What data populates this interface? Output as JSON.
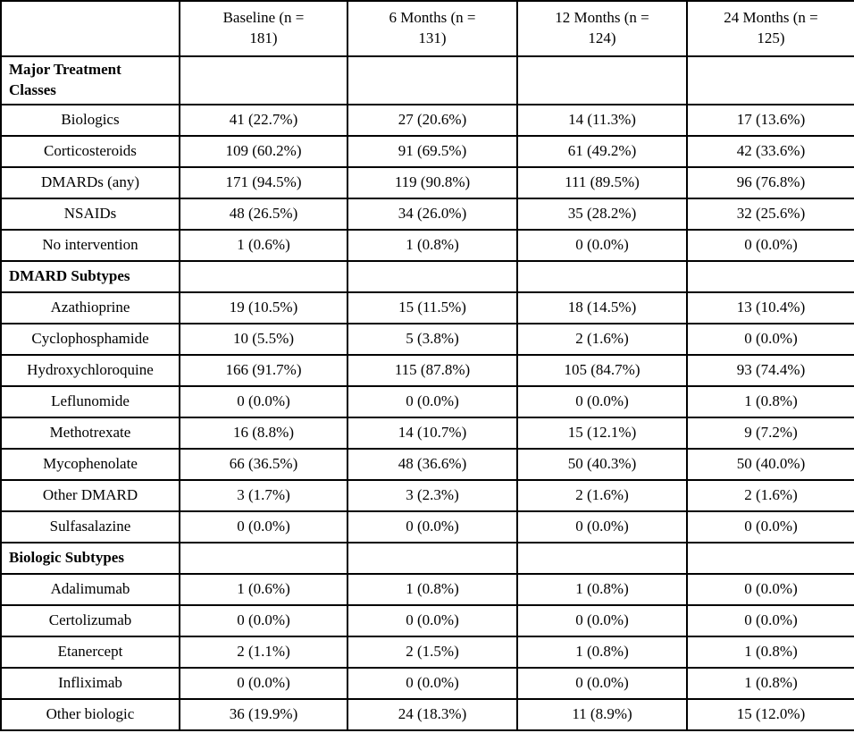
{
  "colors": {
    "background": "#ffffff",
    "border": "#000000",
    "text": "#000000"
  },
  "table": {
    "header": {
      "corner": "",
      "columns": [
        "Baseline (n = 181)",
        "6 Months (n = 131)",
        "12 Months (n = 124)",
        "24 Months (n = 125)"
      ]
    },
    "rows": [
      {
        "kind": "section",
        "label": "Major Treatment Classes",
        "values": [
          "",
          "",
          "",
          ""
        ]
      },
      {
        "kind": "data",
        "label": "Biologics",
        "values": [
          "41 (22.7%)",
          "27 (20.6%)",
          "14 (11.3%)",
          "17 (13.6%)"
        ]
      },
      {
        "kind": "data",
        "label": "Corticosteroids",
        "values": [
          "109 (60.2%)",
          "91 (69.5%)",
          "61 (49.2%)",
          "42 (33.6%)"
        ]
      },
      {
        "kind": "data",
        "label": "DMARDs (any)",
        "values": [
          "171 (94.5%)",
          "119 (90.8%)",
          "111 (89.5%)",
          "96 (76.8%)"
        ]
      },
      {
        "kind": "data",
        "label": "NSAIDs",
        "values": [
          "48 (26.5%)",
          "34 (26.0%)",
          "35 (28.2%)",
          "32 (25.6%)"
        ]
      },
      {
        "kind": "data",
        "label": "No intervention",
        "values": [
          "1 (0.6%)",
          "1 (0.8%)",
          "0 (0.0%)",
          "0 (0.0%)"
        ]
      },
      {
        "kind": "section",
        "label": "DMARD Subtypes",
        "values": [
          "",
          "",
          "",
          ""
        ]
      },
      {
        "kind": "data",
        "label": "Azathioprine",
        "values": [
          "19 (10.5%)",
          "15 (11.5%)",
          "18 (14.5%)",
          "13 (10.4%)"
        ]
      },
      {
        "kind": "data",
        "label": "Cyclophosphamide",
        "values": [
          "10 (5.5%)",
          "5 (3.8%)",
          "2 (1.6%)",
          "0 (0.0%)"
        ]
      },
      {
        "kind": "data",
        "label": "Hydroxychloroquine",
        "values": [
          "166 (91.7%)",
          "115 (87.8%)",
          "105 (84.7%)",
          "93 (74.4%)"
        ]
      },
      {
        "kind": "data",
        "label": "Leflunomide",
        "values": [
          "0 (0.0%)",
          "0 (0.0%)",
          "0 (0.0%)",
          "1 (0.8%)"
        ]
      },
      {
        "kind": "data",
        "label": "Methotrexate",
        "values": [
          "16 (8.8%)",
          "14 (10.7%)",
          "15 (12.1%)",
          "9 (7.2%)"
        ]
      },
      {
        "kind": "data",
        "label": "Mycophenolate",
        "values": [
          "66 (36.5%)",
          "48 (36.6%)",
          "50 (40.3%)",
          "50 (40.0%)"
        ]
      },
      {
        "kind": "data",
        "label": "Other DMARD",
        "values": [
          "3 (1.7%)",
          "3 (2.3%)",
          "2 (1.6%)",
          "2 (1.6%)"
        ]
      },
      {
        "kind": "data",
        "label": "Sulfasalazine",
        "values": [
          "0 (0.0%)",
          "0 (0.0%)",
          "0 (0.0%)",
          "0 (0.0%)"
        ]
      },
      {
        "kind": "section",
        "label": "Biologic Subtypes",
        "values": [
          "",
          "",
          "",
          ""
        ]
      },
      {
        "kind": "data",
        "label": "Adalimumab",
        "values": [
          "1 (0.6%)",
          "1 (0.8%)",
          "1 (0.8%)",
          "0 (0.0%)"
        ]
      },
      {
        "kind": "data",
        "label": "Certolizumab",
        "values": [
          "0 (0.0%)",
          "0 (0.0%)",
          "0 (0.0%)",
          "0 (0.0%)"
        ]
      },
      {
        "kind": "data",
        "label": "Etanercept",
        "values": [
          "2 (1.1%)",
          "2 (1.5%)",
          "1 (0.8%)",
          "1 (0.8%)"
        ]
      },
      {
        "kind": "data",
        "label": "Infliximab",
        "values": [
          "0 (0.0%)",
          "0 (0.0%)",
          "0 (0.0%)",
          "1 (0.8%)"
        ]
      },
      {
        "kind": "data",
        "label": "Other biologic",
        "values": [
          "36 (19.9%)",
          "24 (18.3%)",
          "11 (8.9%)",
          "15 (12.0%)"
        ]
      }
    ]
  }
}
